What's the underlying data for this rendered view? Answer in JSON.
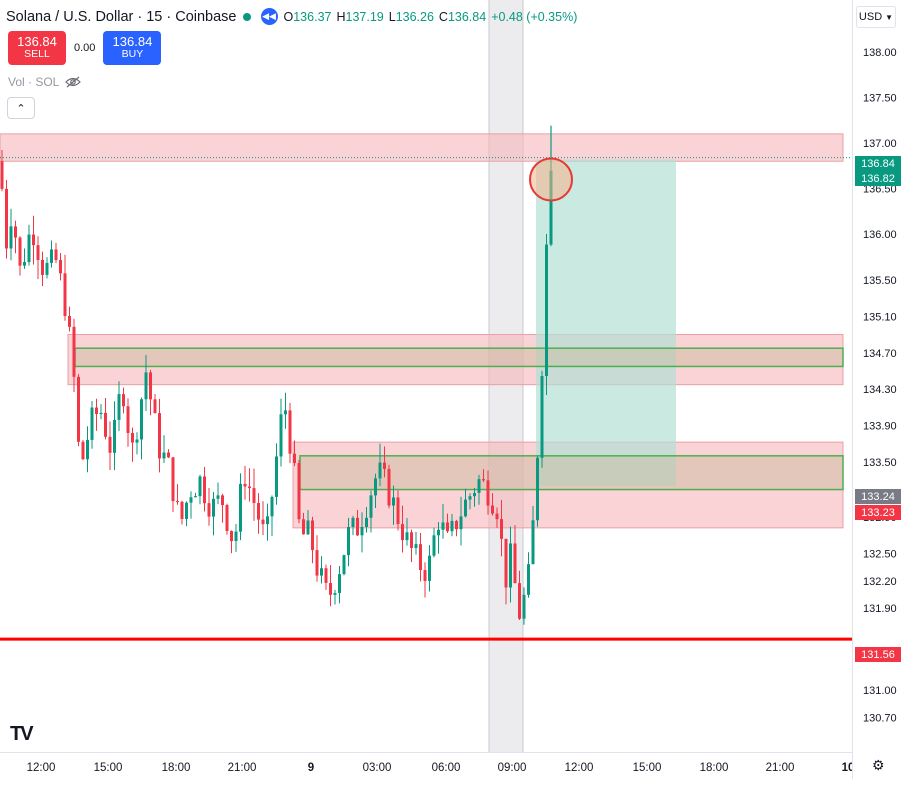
{
  "header": {
    "title": "Solana / U.S. Dollar · 15 · Coinbase",
    "ohlc": [
      {
        "label": "O",
        "value": "136.37"
      },
      {
        "label": "H",
        "value": "137.19"
      },
      {
        "label": "L",
        "value": "136.26"
      },
      {
        "label": "C",
        "value": "136.84"
      }
    ],
    "change": "+0.48 (+0.35%)"
  },
  "trade": {
    "sell_price": "136.84",
    "sell_label": "SELL",
    "spread": "0.00",
    "buy_price": "136.84",
    "buy_label": "BUY"
  },
  "volume_label": "Vol · SOL",
  "currency": "USD",
  "colors": {
    "up": "#089981",
    "down": "#f23645",
    "zone_fill": "#f7b6bb",
    "green_box": "#4caf50",
    "target_fill": "#b2dfd4",
    "support_line": "#ff0000",
    "highlight_band": "#d1d4dc"
  },
  "chart_data": {
    "type": "candlestick",
    "symbol": "SOL/USD",
    "interval": "15",
    "exchange": "Coinbase",
    "ylim": [
      130.55,
      138.25
    ],
    "y_ticks": [
      "138.00",
      "137.50",
      "137.00",
      "136.50",
      "136.00",
      "135.50",
      "135.10",
      "134.70",
      "134.30",
      "133.90",
      "133.50",
      "132.90",
      "132.50",
      "132.20",
      "131.90",
      "131.40",
      "131.00",
      "130.70"
    ],
    "x_ticks": [
      "12:00",
      "15:00",
      "18:00",
      "21:00",
      "9",
      "03:00",
      "06:00",
      "09:00",
      "12:00",
      "15:00",
      "18:00",
      "21:00",
      "10"
    ],
    "price_tags": [
      {
        "value": 136.84,
        "label": "136.84",
        "kind": "up"
      },
      {
        "value": 136.82,
        "label": "136.82",
        "kind": "up"
      },
      {
        "value": 133.24,
        "label": "133.24",
        "kind": "neutral"
      },
      {
        "value": 133.23,
        "label": "133.23",
        "kind": "down"
      },
      {
        "value": 131.56,
        "label": "131.56",
        "kind": "down"
      }
    ],
    "support_line": 131.56,
    "resistance_zone": [
      136.8,
      137.1
    ],
    "supply_zone": [
      134.35,
      134.9
    ],
    "supply_box": [
      134.55,
      134.75
    ],
    "demand_zone": [
      132.78,
      133.72
    ],
    "demand_box": [
      133.2,
      133.57
    ],
    "target_zone": {
      "top": 136.82,
      "bottom": 133.24
    },
    "highlight_band": [
      "08:00",
      "09:15"
    ]
  }
}
